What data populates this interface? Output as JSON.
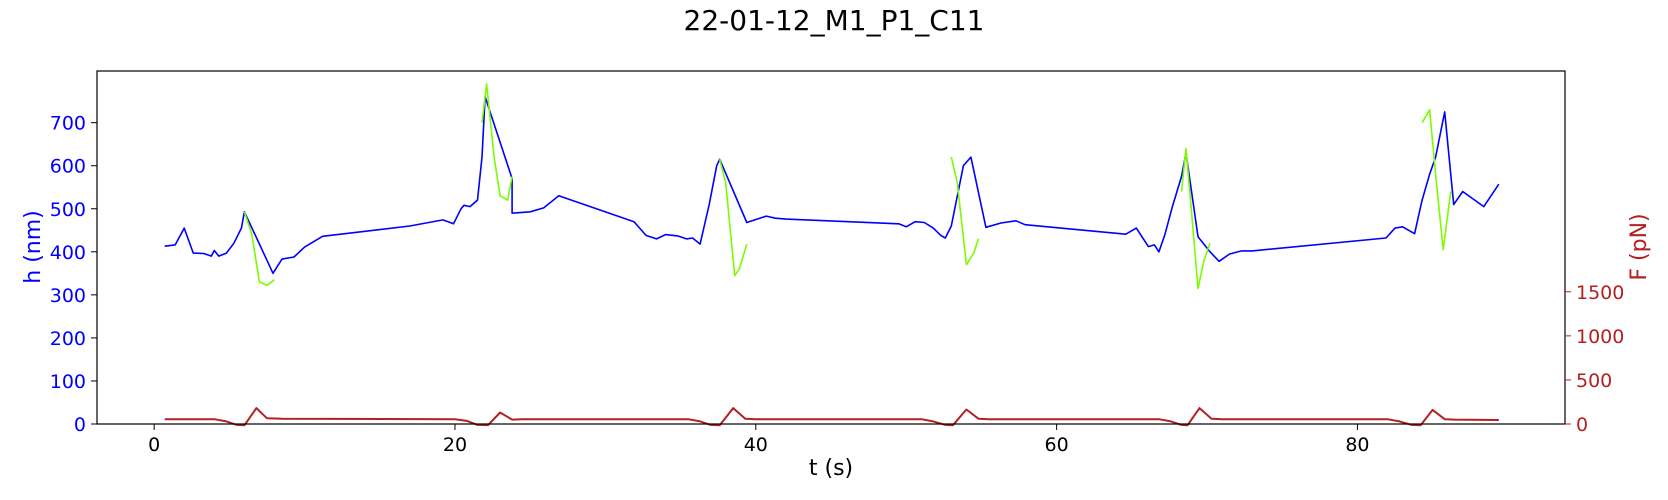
{
  "chart_data": {
    "type": "line",
    "title": "22-01-12_M1_P1_C11",
    "xlabel": "t (s)",
    "ylabel_left": "h (nm)",
    "ylabel_right": "F (pN)",
    "xlim": [
      -3.8,
      93.8
    ],
    "ylim_left": [
      0,
      820
    ],
    "ylim_right": [
      0,
      4005
    ],
    "xticks": [
      0,
      20,
      40,
      60,
      80
    ],
    "yticks_left": [
      0,
      100,
      200,
      300,
      400,
      500,
      600,
      700
    ],
    "yticks_right": [
      0,
      500,
      1000,
      1500
    ],
    "grid": false,
    "colors": {
      "height_base": "#0000ff",
      "height_active": "#7cfc00",
      "force": "#b22222",
      "left_axis": "#0000ff",
      "right_axis": "#b22222",
      "text": "#000000"
    },
    "series": [
      {
        "axis": "left",
        "color": "#0000ff",
        "x": [
          0.7,
          1.4,
          2.0,
          2.6,
          3.3,
          3.8,
          4.0,
          4.3,
          4.8,
          5.3,
          5.8,
          6.0,
          7.9,
          8.5,
          9.3,
          10.0,
          11.2,
          17.0,
          19.2,
          19.9,
          20.4,
          20.6,
          21.0,
          21.5,
          21.8,
          22.0,
          23.8,
          23.8,
          23.9,
          25.0,
          25.9,
          26.9,
          31.9,
          32.7,
          33.4,
          34.0,
          34.8,
          35.4,
          35.8,
          36.3,
          36.9,
          37.4,
          37.6,
          39.4,
          40.0,
          40.7,
          41.3,
          42.0,
          49.5,
          50.0,
          50.6,
          51.2,
          51.8,
          52.3,
          52.6,
          53.0,
          53.8,
          54.3,
          55.3,
          56.3,
          57.3,
          57.9,
          64.6,
          65.3,
          66.1,
          66.5,
          66.8,
          67.2,
          67.7,
          68.3,
          68.6,
          69.4,
          70.2,
          70.8,
          71.5,
          72.3,
          73.0,
          81.9,
          82.5,
          83.0,
          83.8,
          84.3,
          84.8,
          85.2,
          85.8,
          86.4,
          87.0,
          88.4,
          89.4
        ],
        "y": [
          413,
          416,
          455,
          397,
          396,
          390,
          403,
          390,
          397,
          420,
          455,
          493,
          350,
          383,
          388,
          411,
          436,
          460,
          474,
          465,
          500,
          508,
          505,
          520,
          620,
          760,
          570,
          490,
          490,
          493,
          502,
          530,
          470,
          438,
          430,
          440,
          437,
          430,
          432,
          418,
          510,
          600,
          615,
          468,
          475,
          483,
          478,
          476,
          465,
          458,
          470,
          468,
          455,
          438,
          432,
          460,
          600,
          620,
          457,
          467,
          472,
          463,
          441,
          455,
          412,
          416,
          400,
          440,
          505,
          575,
          630,
          435,
          400,
          378,
          395,
          402,
          402,
          432,
          455,
          458,
          442,
          520,
          580,
          620,
          725,
          510,
          540,
          505,
          557
        ]
      },
      {
        "axis": "left",
        "color": "#7cfc00",
        "x": [
          6.0,
          6.5,
          7.0,
          7.5,
          8.0,
          21.8,
          22.1,
          22.6,
          23.0,
          23.5,
          23.8,
          37.6,
          38.0,
          38.6,
          38.9,
          39.4,
          53.0,
          53.4,
          54.0,
          54.5,
          54.8,
          68.3,
          68.6,
          69.0,
          69.4,
          69.8,
          70.2,
          84.3,
          84.8,
          85.2,
          85.7,
          86.2
        ],
        "y": [
          493,
          440,
          330,
          322,
          335,
          700,
          790,
          620,
          530,
          520,
          575,
          615,
          560,
          345,
          360,
          418,
          620,
          560,
          370,
          398,
          430,
          540,
          640,
          480,
          315,
          380,
          420,
          700,
          730,
          580,
          405,
          540
        ]
      },
      {
        "axis": "right",
        "color": "#b22222",
        "x": [
          0.7,
          4.0,
          4.8,
          5.5,
          6.0,
          6.8,
          7.5,
          8.5,
          20.0,
          20.8,
          21.5,
          22.2,
          23.0,
          23.8,
          24.5,
          35.5,
          36.3,
          37.0,
          37.6,
          38.5,
          39.3,
          40.0,
          51.0,
          51.8,
          52.6,
          53.1,
          54.0,
          54.8,
          55.5,
          66.8,
          67.6,
          68.3,
          68.7,
          69.5,
          70.3,
          71.0,
          82.0,
          82.8,
          83.6,
          84.2,
          85.0,
          85.8,
          86.5,
          89.4
        ],
        "y": [
          55,
          55,
          30,
          -10,
          -15,
          180,
          65,
          60,
          55,
          35,
          -10,
          -12,
          130,
          50,
          55,
          55,
          30,
          -10,
          -15,
          180,
          60,
          55,
          55,
          30,
          -10,
          -15,
          165,
          60,
          55,
          55,
          30,
          -10,
          -15,
          180,
          60,
          55,
          55,
          30,
          -10,
          -15,
          160,
          55,
          50,
          45
        ]
      }
    ]
  }
}
